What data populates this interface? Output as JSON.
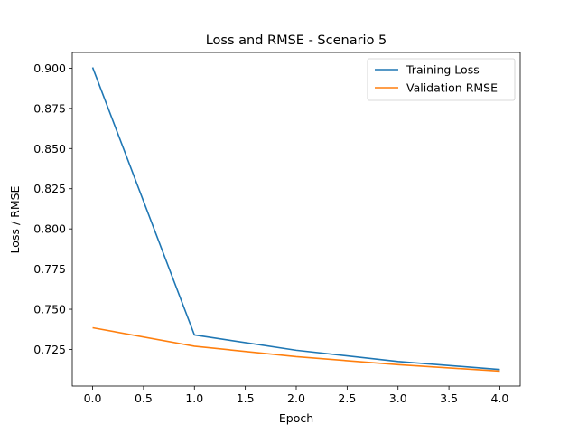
{
  "chart_data": {
    "type": "line",
    "title": "Loss and RMSE - Scenario 5",
    "xlabel": "Epoch",
    "ylabel": "Loss / RMSE",
    "x": [
      0,
      1,
      2,
      3,
      4
    ],
    "series": [
      {
        "name": "Training Loss",
        "color": "#1f77b4",
        "values": [
          0.9005,
          0.734,
          0.7245,
          0.7175,
          0.7125
        ]
      },
      {
        "name": "Validation RMSE",
        "color": "#ff7f0e",
        "values": [
          0.7385,
          0.727,
          0.7205,
          0.7155,
          0.7115
        ]
      }
    ],
    "xlim": [
      -0.2,
      4.2
    ],
    "ylim": [
      0.7022,
      0.9098
    ],
    "xticks": [
      0,
      0.5,
      1,
      1.5,
      2,
      2.5,
      3,
      3.5,
      4
    ],
    "xtick_labels": [
      "0.0",
      "0.5",
      "1.0",
      "1.5",
      "2.0",
      "2.5",
      "3.0",
      "3.5",
      "4.0"
    ],
    "yticks": [
      0.725,
      0.75,
      0.775,
      0.8,
      0.825,
      0.85,
      0.875,
      0.9
    ],
    "ytick_labels": [
      "0.725",
      "0.750",
      "0.775",
      "0.800",
      "0.825",
      "0.850",
      "0.875",
      "0.900"
    ],
    "grid": false,
    "legend_position": "top-right"
  }
}
